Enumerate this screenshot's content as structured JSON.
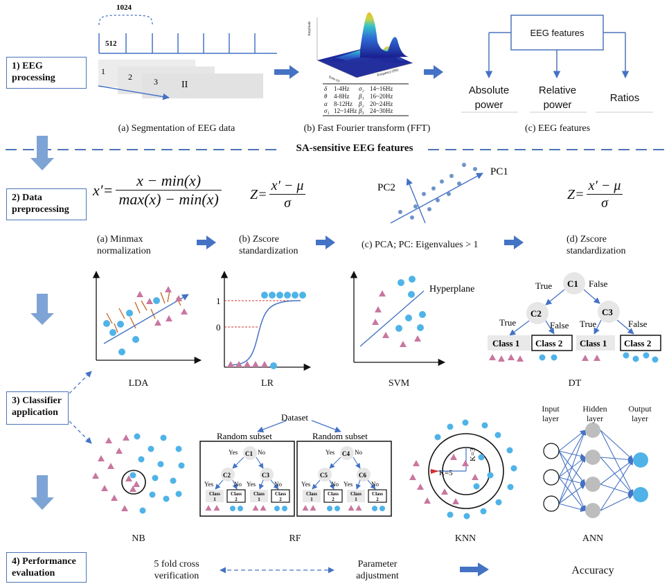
{
  "steps": {
    "s1": "1) EEG processing",
    "s2": "2) Data preprocessing",
    "s3": "3) Classifier application",
    "s4": "4) Performance evaluation"
  },
  "segmentation": {
    "top_label": "1024",
    "half_label": "512",
    "n1": "1",
    "n2": "2",
    "n3": "3",
    "n4": "II",
    "caption": "(a) Segmentation of EEG data"
  },
  "fft": {
    "caption": "(b) Fast Fourier transform (FFT)",
    "z_axis": "Amplitude",
    "x_axis": "Time (s)",
    "y_axis": "Frequency (Hz)",
    "bands": [
      [
        "δ",
        "1-4Hz",
        "σ₂",
        "14~16Hz"
      ],
      [
        "θ",
        "4-8Hz",
        "β₁",
        "16~20Hz"
      ],
      [
        "α",
        "8-12Hz",
        "β₂",
        "20~24Hz"
      ],
      [
        "σ₁",
        "12~14Hz",
        "β₃",
        "24~30Hz"
      ]
    ]
  },
  "features": {
    "root": "EEG features",
    "abs1": "Absolute",
    "abs2": "power",
    "rel1": "Relative",
    "rel2": "power",
    "ratios": "Ratios",
    "caption": "(c)  EEG features"
  },
  "divider": "SA-sensitive EEG features",
  "preprocessing": {
    "minmax_caption": [
      "(a) Minmax",
      "normalization"
    ],
    "zscore_caption": [
      "(b) Zscore",
      "standardization"
    ],
    "pca_caption": "(c) PCA; PC: Eigenvalues > 1",
    "zscore2_caption": [
      "(d) Zscore",
      "standardization"
    ],
    "pc1": "PC1",
    "pc2": "PC2"
  },
  "classifiers": {
    "lda": "LDA",
    "lr": "LR",
    "svm": "SVM",
    "dt": "DT",
    "nb": "NB",
    "rf": "RF",
    "knn": "KNN",
    "ann": "ANN",
    "lr_one": "1",
    "lr_zero": "0",
    "hyperplane": "Hyperplane"
  },
  "dt": {
    "c1": "C1",
    "c2": "C2",
    "c3": "C3",
    "true": "True",
    "false": "False",
    "class1": "Class 1",
    "class2": "Class 2"
  },
  "rf": {
    "dataset": "Dataset",
    "subset": "Random subset",
    "yes": "Yes",
    "no": "No",
    "c1": "C1",
    "c2": "C2",
    "c3": "C3",
    "c4": "C4",
    "c5": "C5",
    "c6": "C6",
    "class": "Class",
    "one": "1",
    "two": "2"
  },
  "knn": {
    "k5": "K=5",
    "k3": "K=3"
  },
  "ann": {
    "input": [
      "Input",
      "layer"
    ],
    "hidden": [
      "Hidden",
      "layer"
    ],
    "output": [
      "Output",
      "layer"
    ]
  },
  "evaluation": {
    "cv": [
      "5 fold cross",
      "verification"
    ],
    "param": [
      "Parameter",
      "adjustment"
    ],
    "accuracy": "Accuracy"
  },
  "colors": {
    "box_border": "#4a74b8",
    "arrow": "#4472c4",
    "down_arrow": "#7da4d4",
    "circle": "#4fb3e8",
    "triangle": "#c8779f",
    "node": "#e6e6e6",
    "red_line": "#d03030"
  }
}
